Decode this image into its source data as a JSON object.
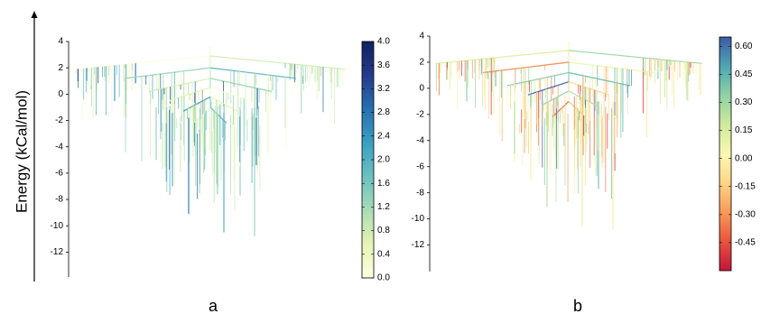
{
  "figure": {
    "ylabel": "Energy (kCal/mol)"
  },
  "chart_data": [
    {
      "type": "tree",
      "panel_label": "a",
      "ylim": [
        -13,
        4
      ],
      "yticks": [
        4,
        2,
        0,
        -2,
        -4,
        -6,
        -8,
        -10,
        -12
      ],
      "colorbar": {
        "range": [
          0.0,
          4.0
        ],
        "ticks": [
          "4.0",
          "3.6",
          "3.2",
          "2.8",
          "2.4",
          "2.0",
          "1.6",
          "1.2",
          "0.8",
          "0.4",
          "0.0"
        ],
        "colors": [
          "#ffffe0",
          "#e6f4b4",
          "#a9dcb6",
          "#6cc1c1",
          "#3a9fc2",
          "#2870b0",
          "#253a8c",
          "#11225e"
        ]
      },
      "shelf_levels": [
        1.9,
        1.2,
        0.2,
        -0.5,
        -1.3,
        -2.2
      ],
      "deep_minima": [
        -10.8,
        -10.5,
        -9.1,
        -7.7,
        -7.0,
        -5.4,
        -5.0
      ]
    },
    {
      "type": "tree",
      "panel_label": "b",
      "ylim": [
        -13,
        4
      ],
      "yticks": [
        4,
        2,
        0,
        -2,
        -4,
        -6,
        -8,
        -10,
        -12
      ],
      "colorbar": {
        "range": [
          -0.6,
          0.65
        ],
        "ticks": [
          "0.60",
          "0.45",
          "0.30",
          "0.15",
          "0.00",
          "-0.15",
          "-0.30",
          "-0.45"
        ],
        "colors": [
          "#c2153b",
          "#e8533f",
          "#f89a58",
          "#fdd586",
          "#fbf8b3",
          "#cfeb9c",
          "#8fd2a4",
          "#4ea6b3",
          "#3d5ba8"
        ]
      },
      "shelf_levels": [
        1.9,
        1.2,
        0.2,
        -0.5,
        -1.3,
        -2.2
      ],
      "deep_minima": [
        -10.8,
        -10.5,
        -9.1,
        -7.7,
        -7.0,
        -5.4,
        -5.0
      ]
    }
  ]
}
